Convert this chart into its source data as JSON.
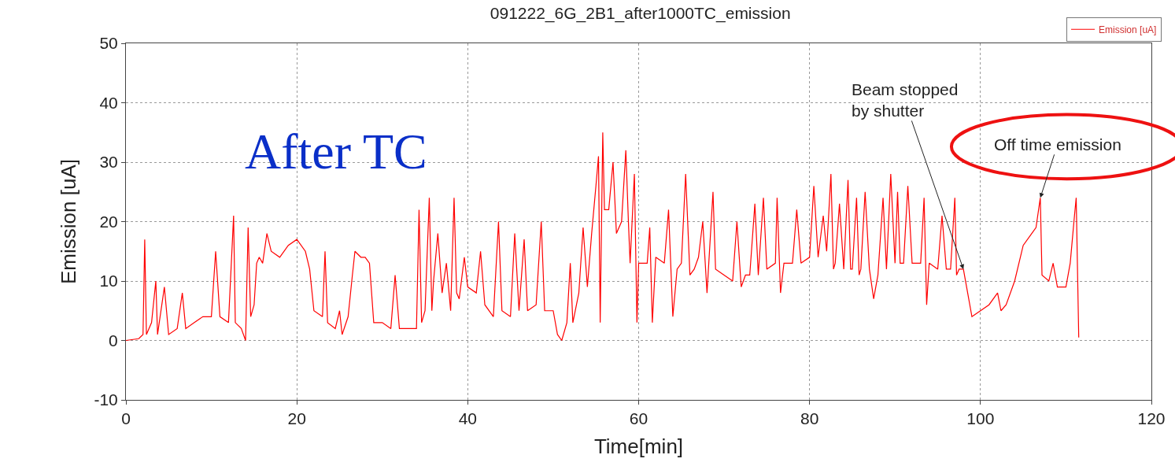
{
  "chart_data": {
    "type": "line",
    "title": "091222_6G_2B1_after1000TC_emission",
    "xlabel": "Time[min]",
    "ylabel": "Emission [uA]",
    "xlim": [
      0,
      120
    ],
    "xticks": [
      0,
      20,
      40,
      60,
      80,
      100,
      120
    ],
    "ylim": [
      -10,
      50
    ],
    "yticks": [
      -10,
      0,
      10,
      20,
      30,
      40,
      50
    ],
    "grid": true,
    "legend": "top right",
    "marker": "none",
    "line_style": "solid",
    "annotations": [
      "After TC",
      {
        "text": "Beam stopped\nby shutter",
        "x": 98,
        "y": 12
      },
      {
        "text": "Off time emission",
        "x": 107,
        "y": 24
      }
    ],
    "series": [
      {
        "name": "Emission [uA]",
        "color": "#ff0000",
        "x": [
          0,
          1.5,
          2,
          2.2,
          2.4,
          3,
          3.5,
          3.7,
          4.5,
          5,
          6,
          6.6,
          7,
          8,
          9,
          10,
          10.5,
          11,
          12,
          12.6,
          12.8,
          13.5,
          14,
          14.3,
          14.6,
          15,
          15.3,
          15.6,
          16,
          16.5,
          17,
          18,
          19,
          20,
          21,
          21.5,
          22,
          23,
          23.3,
          23.6,
          24.5,
          25,
          25.3,
          26,
          26.5,
          26.8,
          27.5,
          28,
          28.5,
          29,
          30,
          31,
          31.5,
          32,
          33,
          34,
          34.3,
          34.6,
          35,
          35.5,
          35.8,
          36,
          36.5,
          37,
          37.5,
          38,
          38.4,
          38.7,
          39,
          39.6,
          40,
          41,
          41.5,
          42,
          43,
          43.6,
          44,
          45,
          45.5,
          46,
          46.6,
          47,
          48,
          48.6,
          49,
          50,
          50.5,
          51,
          51.6,
          52,
          52.3,
          53,
          53.5,
          54,
          54.5,
          55,
          55.3,
          55.5,
          55.8,
          56,
          56.5,
          57,
          57.4,
          58,
          58.5,
          58.8,
          59,
          59.5,
          59.8,
          60,
          61,
          61.3,
          61.6,
          62,
          63,
          63.5,
          64,
          64.5,
          65,
          65.5,
          66,
          66.5,
          67,
          67.5,
          68,
          68.7,
          69,
          70,
          71,
          71.5,
          72,
          72.5,
          73,
          73.6,
          74,
          74.6,
          75,
          76,
          76.2,
          76.6,
          77,
          78,
          78.5,
          79,
          80,
          80.5,
          81,
          81.6,
          82,
          82.5,
          82.8,
          83,
          83.5,
          84,
          84.5,
          84.8,
          85,
          85.5,
          85.8,
          86,
          86.5,
          87,
          87.5,
          88,
          88.6,
          89,
          89.5,
          90,
          90.3,
          90.6,
          91,
          91.5,
          92,
          93,
          93.4,
          93.7,
          94,
          95,
          95.5,
          96,
          96.5,
          97,
          97.2,
          97.5,
          98,
          98.5,
          99,
          100,
          101,
          102,
          102.4,
          103,
          104,
          105,
          106,
          106.5,
          107,
          107.2,
          108,
          108.5,
          109,
          110,
          110.5,
          111,
          111.2,
          111.5
        ],
        "values": [
          0,
          0.3,
          1,
          17,
          1,
          3,
          10,
          1,
          9,
          1,
          2,
          8,
          2,
          3,
          4,
          4,
          15,
          4,
          3,
          21,
          3,
          2,
          0,
          19,
          4,
          6,
          13,
          14,
          13,
          18,
          15,
          14,
          16,
          17,
          15,
          12,
          5,
          4,
          15,
          3,
          2,
          5,
          1,
          4,
          11,
          15,
          14,
          14,
          13,
          3,
          3,
          2,
          11,
          2,
          2,
          2,
          22,
          3,
          5,
          24,
          5,
          10,
          18,
          8,
          13,
          5,
          24,
          8,
          7,
          14,
          9,
          8,
          15,
          6,
          4,
          20,
          5,
          4,
          18,
          5,
          17,
          5,
          6,
          20,
          5,
          5,
          1,
          0,
          3,
          13,
          3,
          8,
          19,
          9,
          18,
          26,
          31,
          3,
          35,
          22,
          22,
          30,
          18,
          20,
          32,
          20,
          13,
          28,
          3,
          13,
          13,
          19,
          3,
          14,
          13,
          22,
          4,
          12,
          13,
          28,
          11,
          12,
          14,
          20,
          8,
          25,
          12,
          11,
          10,
          20,
          9,
          11,
          11,
          23,
          11,
          24,
          12,
          13,
          24,
          8,
          13,
          13,
          22,
          13,
          14,
          26,
          14,
          21,
          15,
          28,
          12,
          13,
          23,
          12,
          27,
          12,
          12,
          24,
          11,
          12,
          25,
          12,
          7,
          11,
          24,
          12,
          28,
          13,
          25,
          13,
          13,
          26,
          13,
          13,
          24,
          6,
          13,
          12,
          21,
          12,
          12,
          24,
          11,
          12,
          12,
          8,
          4,
          5,
          6,
          8,
          5,
          6,
          10,
          16,
          18,
          19,
          24,
          11,
          10,
          13,
          9,
          9,
          13,
          21,
          24,
          0.5
        ]
      }
    ]
  }
}
